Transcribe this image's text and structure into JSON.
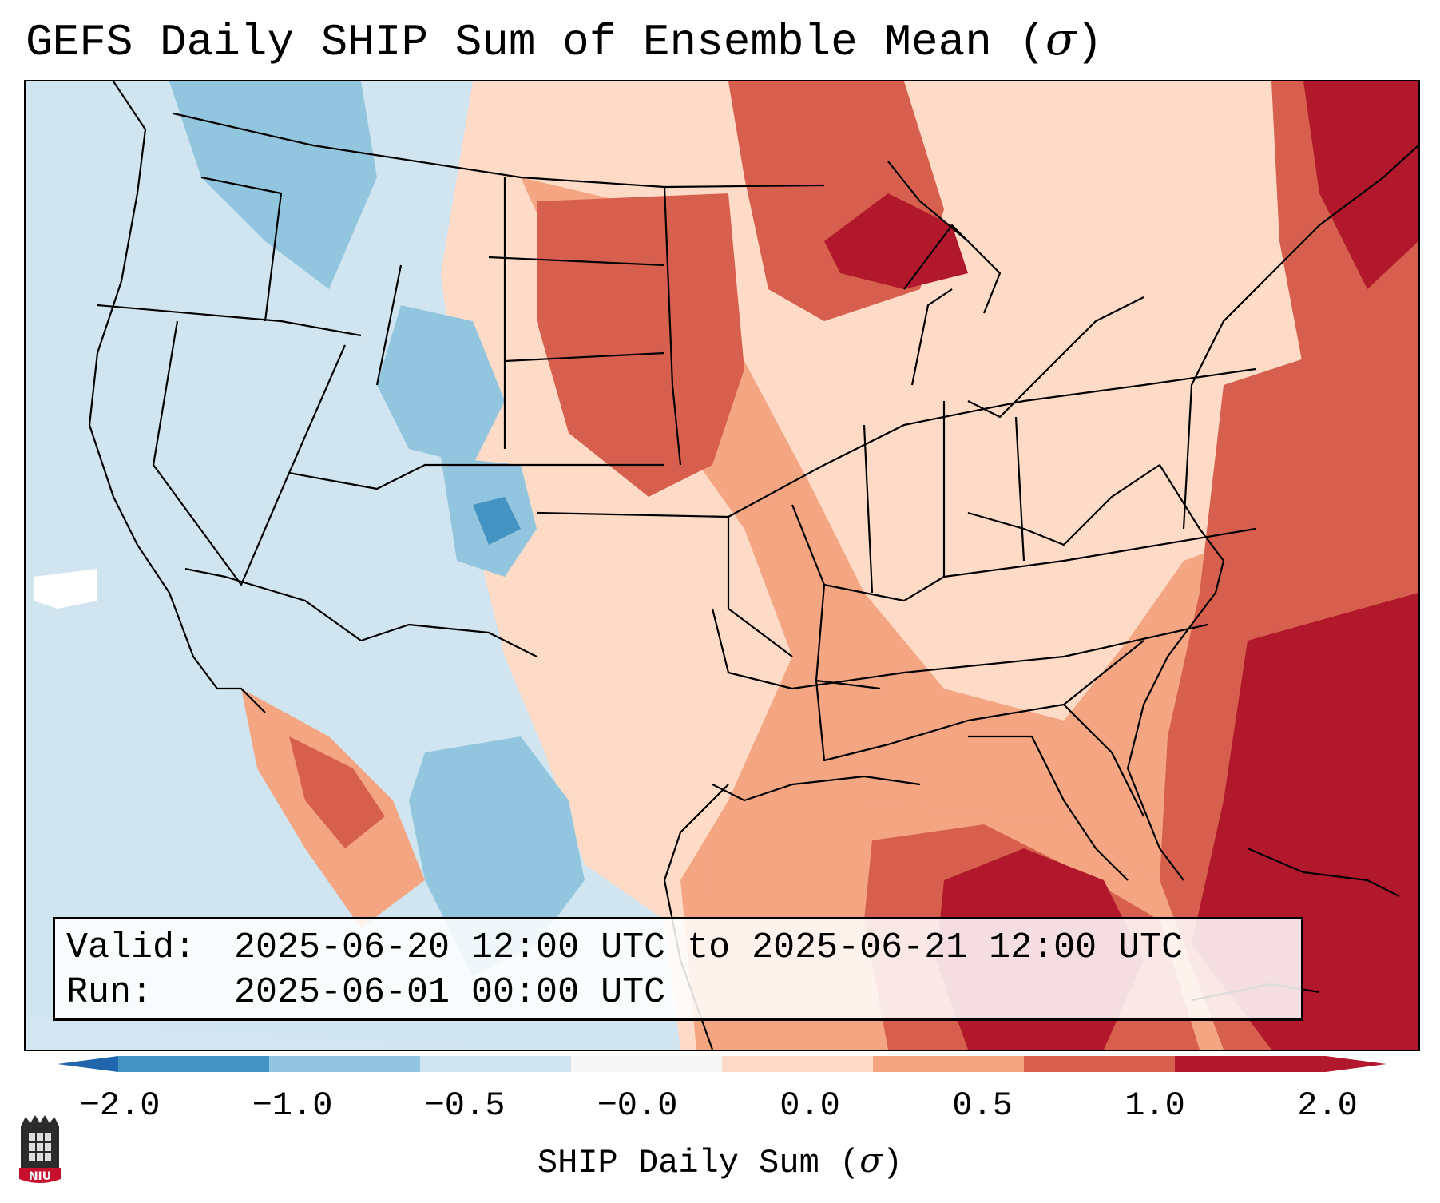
{
  "title": {
    "text": "GEFS Daily SHIP Sum of Ensemble Mean (",
    "symbol": "σ",
    "close": ")"
  },
  "info": {
    "valid_label": "Valid:",
    "valid_value": "2025-06-20 12:00 UTC to 2025-06-21 12:00 UTC",
    "run_label": "Run:",
    "run_value": "2025-06-01 00:00 UTC"
  },
  "colorbar": {
    "ticks": [
      "−2.0",
      "−1.0",
      "−0.5",
      "−0.0",
      "0.0",
      "0.5",
      "1.0",
      "2.0"
    ],
    "label_text": "SHIP Daily Sum (",
    "label_symbol": "σ",
    "label_close": ")",
    "colors": [
      "#4393c3",
      "#92c5de",
      "#d1e5f0",
      "#f7f7f7",
      "#fddbc7",
      "#f4a582",
      "#d6604d",
      "#b2182b"
    ],
    "extend_low": "#2166ac",
    "extend_high": "#b2182b"
  },
  "map": {
    "background": "#d1e5f0"
  },
  "logo": {
    "text": "NIU",
    "color": "#c8102e"
  }
}
